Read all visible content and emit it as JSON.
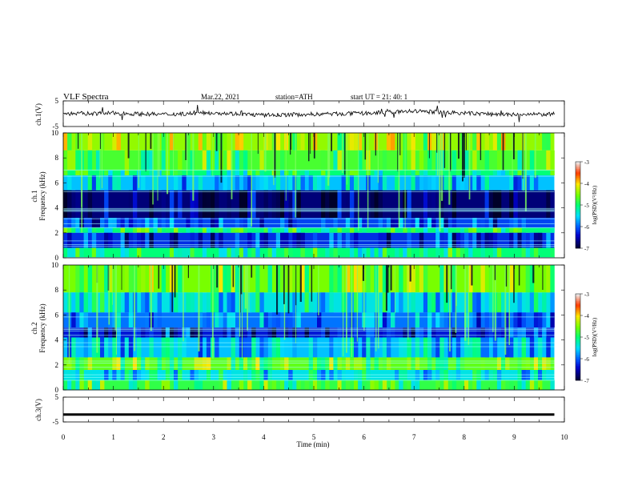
{
  "header": {
    "title": "VLF  Spectra",
    "date": "Mar.22, 2021",
    "station": "station=ATH",
    "start": "start  UT  =    21: 40: 1"
  },
  "colorbar": {
    "label": "log(PSD)(V²/Hz)",
    "ticks": [
      "-3",
      "-4",
      "-5",
      "-6",
      "-7"
    ],
    "colors": [
      "#e6e6e6",
      "#ff0000",
      "#ffff00",
      "#00ff00",
      "#00ffff",
      "#0000ff",
      "#000033"
    ]
  },
  "chart_data": [
    {
      "type": "line",
      "panel": "ch1-waveform",
      "ylabel": "ch.1(V)",
      "ylim": [
        -5,
        5
      ],
      "yticks": [
        "5",
        "-5"
      ],
      "x": [
        0,
        1,
        2,
        3,
        4,
        5,
        6,
        7,
        8,
        9,
        9.8
      ],
      "y": [
        0,
        0.2,
        -0.3,
        0.4,
        -0.6,
        -0.2,
        0.1,
        1.0,
        0.2,
        -0.4,
        -0.2
      ]
    },
    {
      "type": "heatmap",
      "panel": "ch1-spectrogram",
      "ylabel": "ch.1\nFrequency  (kHz)",
      "ylim": [
        0,
        10
      ],
      "yticks": [
        "10",
        "8",
        "6",
        "4",
        "2",
        "0"
      ],
      "x_range": [
        0,
        9.8
      ],
      "bands": [
        {
          "from": 8.6,
          "to": 10,
          "level": -4.4
        },
        {
          "from": 7.0,
          "to": 8.6,
          "level": -4.7
        },
        {
          "from": 6.6,
          "to": 7.0,
          "level": -5.0
        },
        {
          "from": 5.4,
          "to": 6.6,
          "level": -5.6
        },
        {
          "from": 3.2,
          "to": 5.4,
          "level": -6.7
        },
        {
          "from": 2.4,
          "to": 3.2,
          "level": -6.1
        },
        {
          "from": 2.0,
          "to": 2.4,
          "level": -5.0
        },
        {
          "from": 0.8,
          "to": 2.0,
          "level": -6.2
        },
        {
          "from": 0.0,
          "to": 0.8,
          "level": -5.0
        }
      ],
      "colorbar_range": [
        -7,
        -3
      ]
    },
    {
      "type": "heatmap",
      "panel": "ch2-spectrogram",
      "ylabel": "ch.2\nFrequency  (kHz)",
      "ylim": [
        0,
        10
      ],
      "yticks": [
        "10",
        "8",
        "6",
        "4",
        "2",
        "0"
      ],
      "x_range": [
        0,
        9.8
      ],
      "bands": [
        {
          "from": 7.8,
          "to": 10,
          "level": -4.5
        },
        {
          "from": 6.2,
          "to": 7.8,
          "level": -5.4
        },
        {
          "from": 5.0,
          "to": 6.2,
          "level": -5.9
        },
        {
          "from": 4.2,
          "to": 5.0,
          "level": -6.3
        },
        {
          "from": 2.6,
          "to": 4.2,
          "level": -5.6
        },
        {
          "from": 1.6,
          "to": 2.6,
          "level": -4.6
        },
        {
          "from": 0.8,
          "to": 1.6,
          "level": -5.4
        },
        {
          "from": 0.0,
          "to": 0.8,
          "level": -4.8
        }
      ],
      "colorbar_range": [
        -7,
        -3
      ]
    },
    {
      "type": "line",
      "panel": "ch3-waveform",
      "ylabel": "ch.3(V)",
      "ylim": [
        -5,
        5
      ],
      "yticks": [
        "5",
        "-5"
      ],
      "x": [
        0,
        9.8
      ],
      "y": [
        -2,
        -2
      ]
    }
  ],
  "xaxis": {
    "label": "Time  (min)",
    "xlim": [
      0,
      10
    ],
    "ticks": [
      "0",
      "1",
      "2",
      "3",
      "4",
      "5",
      "6",
      "7",
      "8",
      "9",
      "10"
    ]
  }
}
